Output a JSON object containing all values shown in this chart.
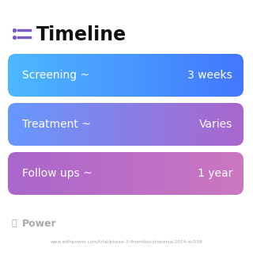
{
  "title": "Timeline",
  "title_icon_color": "#7c5cbf",
  "title_fontsize": 17,
  "title_fontweight": "bold",
  "background_color": "#ffffff",
  "row_configs": [
    {
      "label_left": "Screening ~",
      "label_right": "3 weeks",
      "grad_start": "#4db8ff",
      "grad_end": "#4477ff"
    },
    {
      "label_left": "Treatment ~",
      "label_right": "Varies",
      "grad_start": "#6699ff",
      "grad_end": "#aa66cc"
    },
    {
      "label_left": "Follow ups ~",
      "label_right": "1 year",
      "grad_start": "#aa66cc",
      "grad_end": "#cc77c0"
    }
  ],
  "footer_logo_text": "Power",
  "footer_url": "www.withpower.com/trial/phase-3-thrombocytopenia-2014-ac539",
  "footer_color": "#aaaaaa",
  "row_text_color": "#ffffff",
  "row_fontsize": 10
}
